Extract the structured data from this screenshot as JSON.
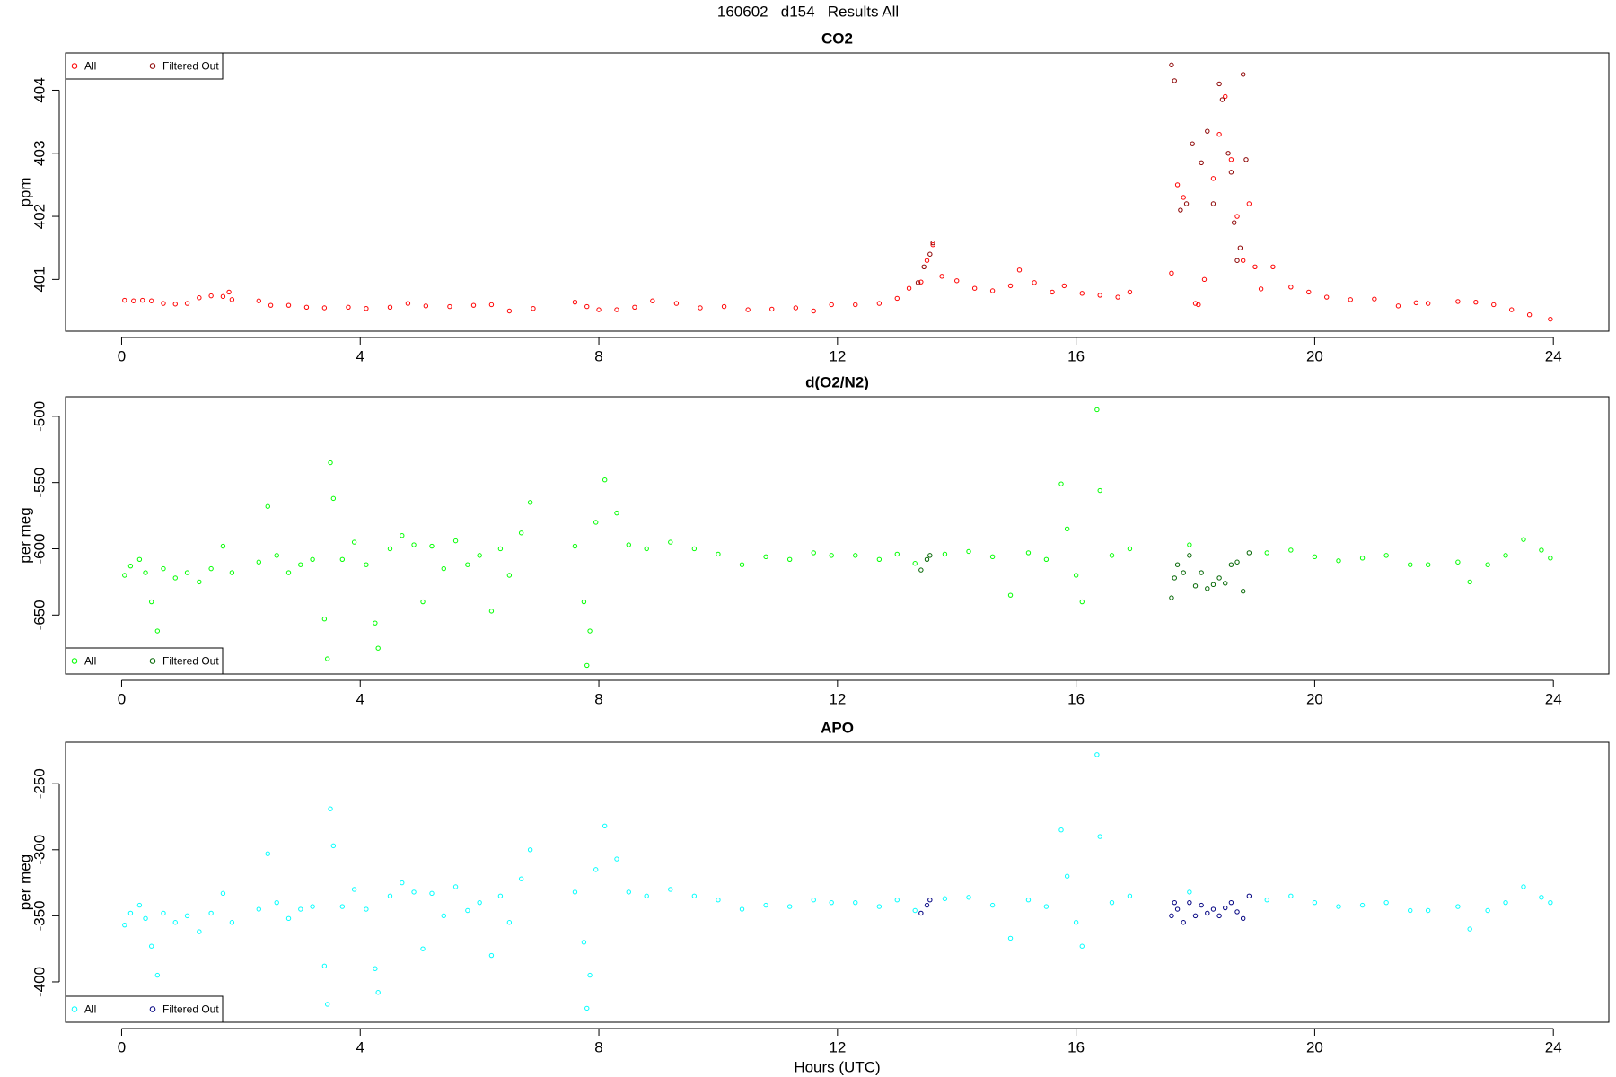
{
  "title": "160602   d154   Results All",
  "chart_data": [
    {
      "type": "scatter",
      "title": "CO2",
      "ylabel": "ppm",
      "legend": "top-left",
      "xlim": [
        -0.94,
        24.93
      ],
      "xticks": [
        0,
        4,
        8,
        12,
        16,
        20,
        24
      ],
      "ylim": [
        400.18,
        404.59
      ],
      "yticks": [
        401,
        402,
        403,
        404
      ],
      "series": [
        {
          "name": "All",
          "color": "#ff0000",
          "x": [
            0.05,
            0.2,
            0.35,
            0.5,
            0.7,
            0.9,
            1.1,
            1.3,
            1.5,
            1.7,
            1.8,
            1.85,
            2.3,
            2.5,
            2.8,
            3.1,
            3.4,
            3.8,
            4.1,
            4.5,
            4.8,
            5.1,
            5.5,
            5.9,
            6.2,
            6.5,
            6.9,
            7.6,
            7.8,
            8.0,
            8.3,
            8.6,
            8.9,
            9.3,
            9.7,
            10.1,
            10.5,
            10.9,
            11.3,
            11.6,
            11.9,
            12.3,
            12.7,
            13.0,
            13.2,
            13.4,
            13.5,
            13.6,
            13.75,
            14.0,
            14.3,
            14.6,
            14.9,
            15.05,
            15.3,
            15.6,
            15.8,
            16.1,
            16.4,
            16.7,
            16.9,
            17.6,
            17.7,
            17.8,
            18.0,
            18.05,
            18.15,
            18.3,
            18.4,
            18.5,
            18.6,
            18.7,
            18.8,
            18.9,
            19.0,
            19.1,
            19.3,
            19.6,
            19.9,
            20.2,
            20.6,
            21.0,
            21.4,
            21.7,
            21.9,
            22.4,
            22.7,
            23.0,
            23.3,
            23.6,
            23.95
          ],
          "values": [
            400.67,
            400.66,
            400.67,
            400.66,
            400.62,
            400.61,
            400.62,
            400.71,
            400.74,
            400.73,
            400.8,
            400.68,
            400.66,
            400.59,
            400.59,
            400.56,
            400.55,
            400.56,
            400.54,
            400.56,
            400.62,
            400.58,
            400.57,
            400.59,
            400.6,
            400.5,
            400.54,
            400.64,
            400.57,
            400.52,
            400.52,
            400.56,
            400.66,
            400.62,
            400.55,
            400.57,
            400.52,
            400.53,
            400.55,
            400.5,
            400.6,
            400.6,
            400.62,
            400.7,
            400.86,
            400.96,
            401.3,
            401.55,
            401.05,
            400.98,
            400.86,
            400.82,
            400.9,
            401.15,
            400.95,
            400.8,
            400.9,
            400.78,
            400.75,
            400.72,
            400.8,
            401.1,
            402.5,
            402.3,
            400.62,
            400.6,
            401.0,
            402.6,
            403.3,
            403.9,
            402.9,
            402.0,
            401.3,
            402.2,
            401.2,
            400.85,
            401.2,
            400.88,
            400.8,
            400.72,
            400.68,
            400.69,
            400.58,
            400.63,
            400.62,
            400.65,
            400.64,
            400.6,
            400.52,
            400.44,
            400.37
          ]
        },
        {
          "name": "Filtered Out",
          "color": "#8b0000",
          "x": [
            13.35,
            13.45,
            13.55,
            13.6,
            17.6,
            17.65,
            17.75,
            17.85,
            17.95,
            18.1,
            18.2,
            18.3,
            18.4,
            18.45,
            18.55,
            18.6,
            18.65,
            18.7,
            18.75,
            18.8,
            18.85
          ],
          "values": [
            400.95,
            401.2,
            401.4,
            401.58,
            404.4,
            404.15,
            402.1,
            402.2,
            403.15,
            402.85,
            403.35,
            402.2,
            404.1,
            403.85,
            403.0,
            402.7,
            401.9,
            401.3,
            401.5,
            404.25,
            402.9
          ]
        }
      ]
    },
    {
      "type": "scatter",
      "title": "d(O2/N2)",
      "ylabel": "per meg",
      "legend": "bottom-left",
      "xlim": [
        -0.94,
        24.93
      ],
      "xticks": [
        0,
        4,
        8,
        12,
        16,
        20,
        24
      ],
      "ylim": [
        -694.5,
        -485.2
      ],
      "yticks": [
        -650,
        -600,
        -550,
        -500
      ],
      "series": [
        {
          "name": "All",
          "color": "#00ff00",
          "x": [
            0.05,
            0.15,
            0.3,
            0.4,
            0.5,
            0.6,
            0.7,
            0.9,
            1.1,
            1.3,
            1.5,
            1.7,
            1.85,
            2.3,
            2.45,
            2.6,
            2.8,
            3.0,
            3.2,
            3.4,
            3.45,
            3.5,
            3.55,
            3.7,
            3.9,
            4.1,
            4.25,
            4.3,
            4.5,
            4.7,
            4.9,
            5.05,
            5.2,
            5.4,
            5.6,
            5.8,
            6.0,
            6.2,
            6.35,
            6.5,
            6.7,
            6.85,
            7.6,
            7.75,
            7.8,
            7.85,
            7.95,
            8.1,
            8.3,
            8.5,
            8.8,
            9.2,
            9.6,
            10.0,
            10.4,
            10.8,
            11.2,
            11.6,
            11.9,
            12.3,
            12.7,
            13.0,
            13.3,
            13.8,
            14.2,
            14.6,
            14.9,
            15.2,
            15.5,
            15.75,
            15.85,
            16.0,
            16.1,
            16.35,
            16.4,
            16.6,
            16.9,
            17.9,
            19.2,
            19.6,
            20.0,
            20.4,
            20.8,
            21.2,
            21.6,
            21.9,
            22.4,
            22.6,
            22.9,
            23.2,
            23.5,
            23.8,
            23.95
          ],
          "values": [
            -620,
            -613,
            -608,
            -618,
            -640,
            -662,
            -615,
            -622,
            -618,
            -625,
            -615,
            -598,
            -618,
            -610,
            -568,
            -605,
            -618,
            -612,
            -608,
            -653,
            -683,
            -535,
            -562,
            -608,
            -595,
            -612,
            -656,
            -675,
            -600,
            -590,
            -597,
            -640,
            -598,
            -615,
            -594,
            -612,
            -605,
            -647,
            -600,
            -620,
            -588,
            -565,
            -598,
            -640,
            -688,
            -662,
            -580,
            -548,
            -573,
            -597,
            -600,
            -595,
            -600,
            -604,
            -612,
            -606,
            -608,
            -603,
            -605,
            -605,
            -608,
            -604,
            -611,
            -604,
            -602,
            -606,
            -635,
            -603,
            -608,
            -551,
            -585,
            -620,
            -640,
            -495,
            -556,
            -605,
            -600,
            -597,
            -603,
            -601,
            -606,
            -609,
            -607,
            -605,
            -612,
            -612,
            -610,
            -625,
            -612,
            -605,
            -593,
            -601,
            -607
          ]
        },
        {
          "name": "Filtered Out",
          "color": "#006400",
          "x": [
            13.4,
            13.5,
            13.55,
            17.6,
            17.65,
            17.7,
            17.8,
            17.9,
            18.0,
            18.1,
            18.2,
            18.3,
            18.4,
            18.5,
            18.6,
            18.7,
            18.8,
            18.9
          ],
          "values": [
            -616,
            -608,
            -605,
            -637,
            -622,
            -612,
            -618,
            -605,
            -628,
            -618,
            -630,
            -627,
            -622,
            -626,
            -612,
            -610,
            -632,
            -603
          ]
        }
      ]
    },
    {
      "type": "scatter",
      "title": "APO",
      "ylabel": "per meg",
      "xlabel": "Hours (UTC)",
      "legend": "bottom-left",
      "xlim": [
        -0.94,
        24.93
      ],
      "xticks": [
        0,
        4,
        8,
        12,
        16,
        20,
        24
      ],
      "ylim": [
        -430.6,
        -218.6
      ],
      "yticks": [
        -400,
        -350,
        -300,
        -250
      ],
      "series": [
        {
          "name": "All",
          "color": "#00ffff",
          "x": [
            0.05,
            0.15,
            0.3,
            0.4,
            0.5,
            0.6,
            0.7,
            0.9,
            1.1,
            1.3,
            1.5,
            1.7,
            1.85,
            2.3,
            2.45,
            2.6,
            2.8,
            3.0,
            3.2,
            3.4,
            3.45,
            3.5,
            3.55,
            3.7,
            3.9,
            4.1,
            4.25,
            4.3,
            4.5,
            4.7,
            4.9,
            5.05,
            5.2,
            5.4,
            5.6,
            5.8,
            6.0,
            6.2,
            6.35,
            6.5,
            6.7,
            6.85,
            7.6,
            7.75,
            7.8,
            7.85,
            7.95,
            8.1,
            8.3,
            8.5,
            8.8,
            9.2,
            9.6,
            10.0,
            10.4,
            10.8,
            11.2,
            11.6,
            11.9,
            12.3,
            12.7,
            13.0,
            13.3,
            13.8,
            14.2,
            14.6,
            14.9,
            15.2,
            15.5,
            15.75,
            15.85,
            16.0,
            16.1,
            16.35,
            16.4,
            16.6,
            16.9,
            17.9,
            19.2,
            19.6,
            20.0,
            20.4,
            20.8,
            21.2,
            21.6,
            21.9,
            22.4,
            22.6,
            22.9,
            23.2,
            23.5,
            23.8,
            23.95
          ],
          "values": [
            -357,
            -348,
            -342,
            -352,
            -373,
            -395,
            -348,
            -355,
            -350,
            -362,
            -348,
            -333,
            -355,
            -345,
            -303,
            -340,
            -352,
            -345,
            -343,
            -388,
            -417,
            -269,
            -297,
            -343,
            -330,
            -345,
            -390,
            -408,
            -335,
            -325,
            -332,
            -375,
            -333,
            -350,
            -328,
            -346,
            -340,
            -380,
            -335,
            -355,
            -322,
            -300,
            -332,
            -370,
            -420,
            -395,
            -315,
            -282,
            -307,
            -332,
            -335,
            -330,
            -335,
            -338,
            -345,
            -342,
            -343,
            -338,
            -340,
            -340,
            -343,
            -338,
            -346,
            -337,
            -336,
            -342,
            -367,
            -338,
            -343,
            -285,
            -320,
            -355,
            -373,
            -228,
            -290,
            -340,
            -335,
            -332,
            -338,
            -335,
            -340,
            -343,
            -342,
            -340,
            -346,
            -346,
            -343,
            -360,
            -346,
            -340,
            -328,
            -336,
            -340
          ]
        },
        {
          "name": "Filtered Out",
          "color": "#000080",
          "x": [
            13.4,
            13.5,
            13.55,
            17.6,
            17.65,
            17.7,
            17.8,
            17.9,
            18.0,
            18.1,
            18.2,
            18.3,
            18.4,
            18.5,
            18.6,
            18.7,
            18.8,
            18.9
          ],
          "values": [
            -348,
            -342,
            -338,
            -350,
            -340,
            -345,
            -355,
            -340,
            -350,
            -342,
            -348,
            -345,
            -350,
            -344,
            -340,
            -347,
            -352,
            -335
          ]
        }
      ]
    }
  ]
}
